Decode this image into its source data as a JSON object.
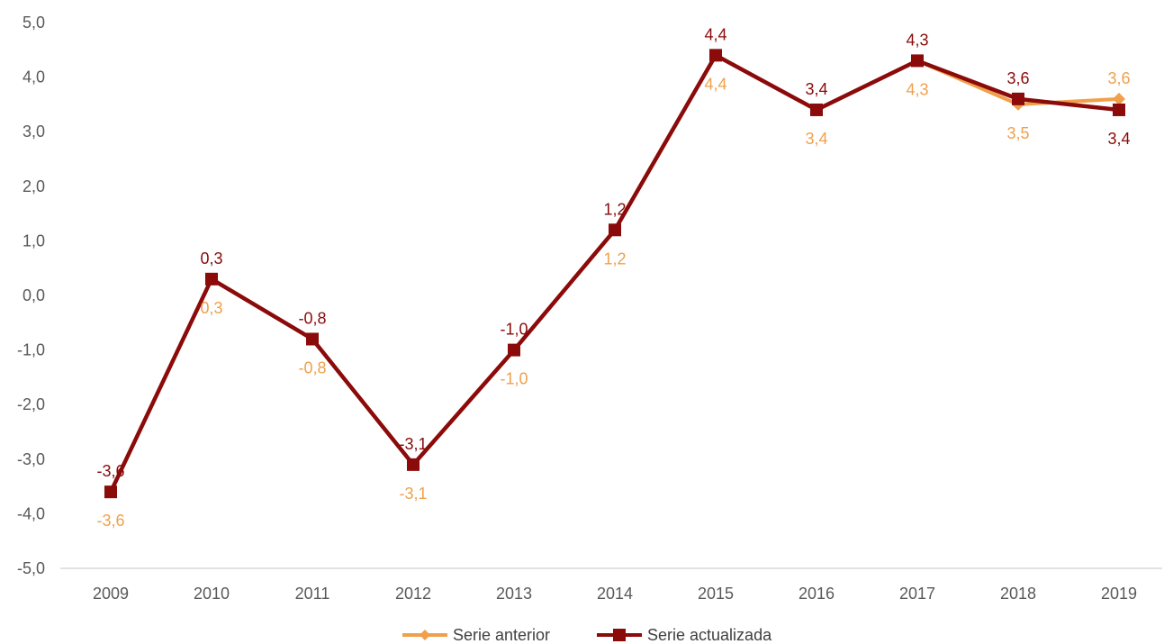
{
  "chart_data": {
    "type": "line",
    "x": [
      "2009",
      "2010",
      "2011",
      "2012",
      "2013",
      "2014",
      "2015",
      "2016",
      "2017",
      "2018",
      "2019"
    ],
    "ylim": [
      -5.0,
      5.0
    ],
    "yticks": [
      "5,0",
      "4,0",
      "3,0",
      "2,0",
      "1,0",
      "0,0",
      "-1,0",
      "-2,0",
      "-3,0",
      "-4,0",
      "-5,0"
    ],
    "ytick_values": [
      5,
      4,
      3,
      2,
      1,
      0,
      -1,
      -2,
      -3,
      -4,
      -5
    ],
    "grid": false,
    "legend_position": "bottom",
    "series": [
      {
        "name": "Serie anterior",
        "color": "#F0A04B",
        "marker": "diamond",
        "values": [
          -3.6,
          0.3,
          -0.8,
          -3.1,
          -1.0,
          1.2,
          4.4,
          3.4,
          4.3,
          3.5,
          3.6
        ],
        "labels": [
          "-3,6",
          "0,3",
          "-0,8",
          "-3,1",
          "-1,0",
          "1,2",
          "4,4",
          "3,4",
          "4,3",
          "3,5",
          "3,6"
        ],
        "label_position": [
          "below",
          "below",
          "below",
          "below",
          "below",
          "below",
          "below",
          "below",
          "below",
          "below",
          "above"
        ]
      },
      {
        "name": "Serie actualizada",
        "color": "#8B0A0A",
        "marker": "square",
        "values": [
          -3.6,
          0.3,
          -0.8,
          -3.1,
          -1.0,
          1.2,
          4.4,
          3.4,
          4.3,
          3.6,
          3.4
        ],
        "labels": [
          "-3,6",
          "0,3",
          "-0,8",
          "-3,1",
          "-1,0",
          "1,2",
          "4,4",
          "3,4",
          "4,3",
          "3,6",
          "3,4"
        ],
        "label_position": [
          "above",
          "above",
          "above",
          "above",
          "above",
          "above",
          "above",
          "above",
          "above",
          "above",
          "below"
        ]
      }
    ]
  }
}
